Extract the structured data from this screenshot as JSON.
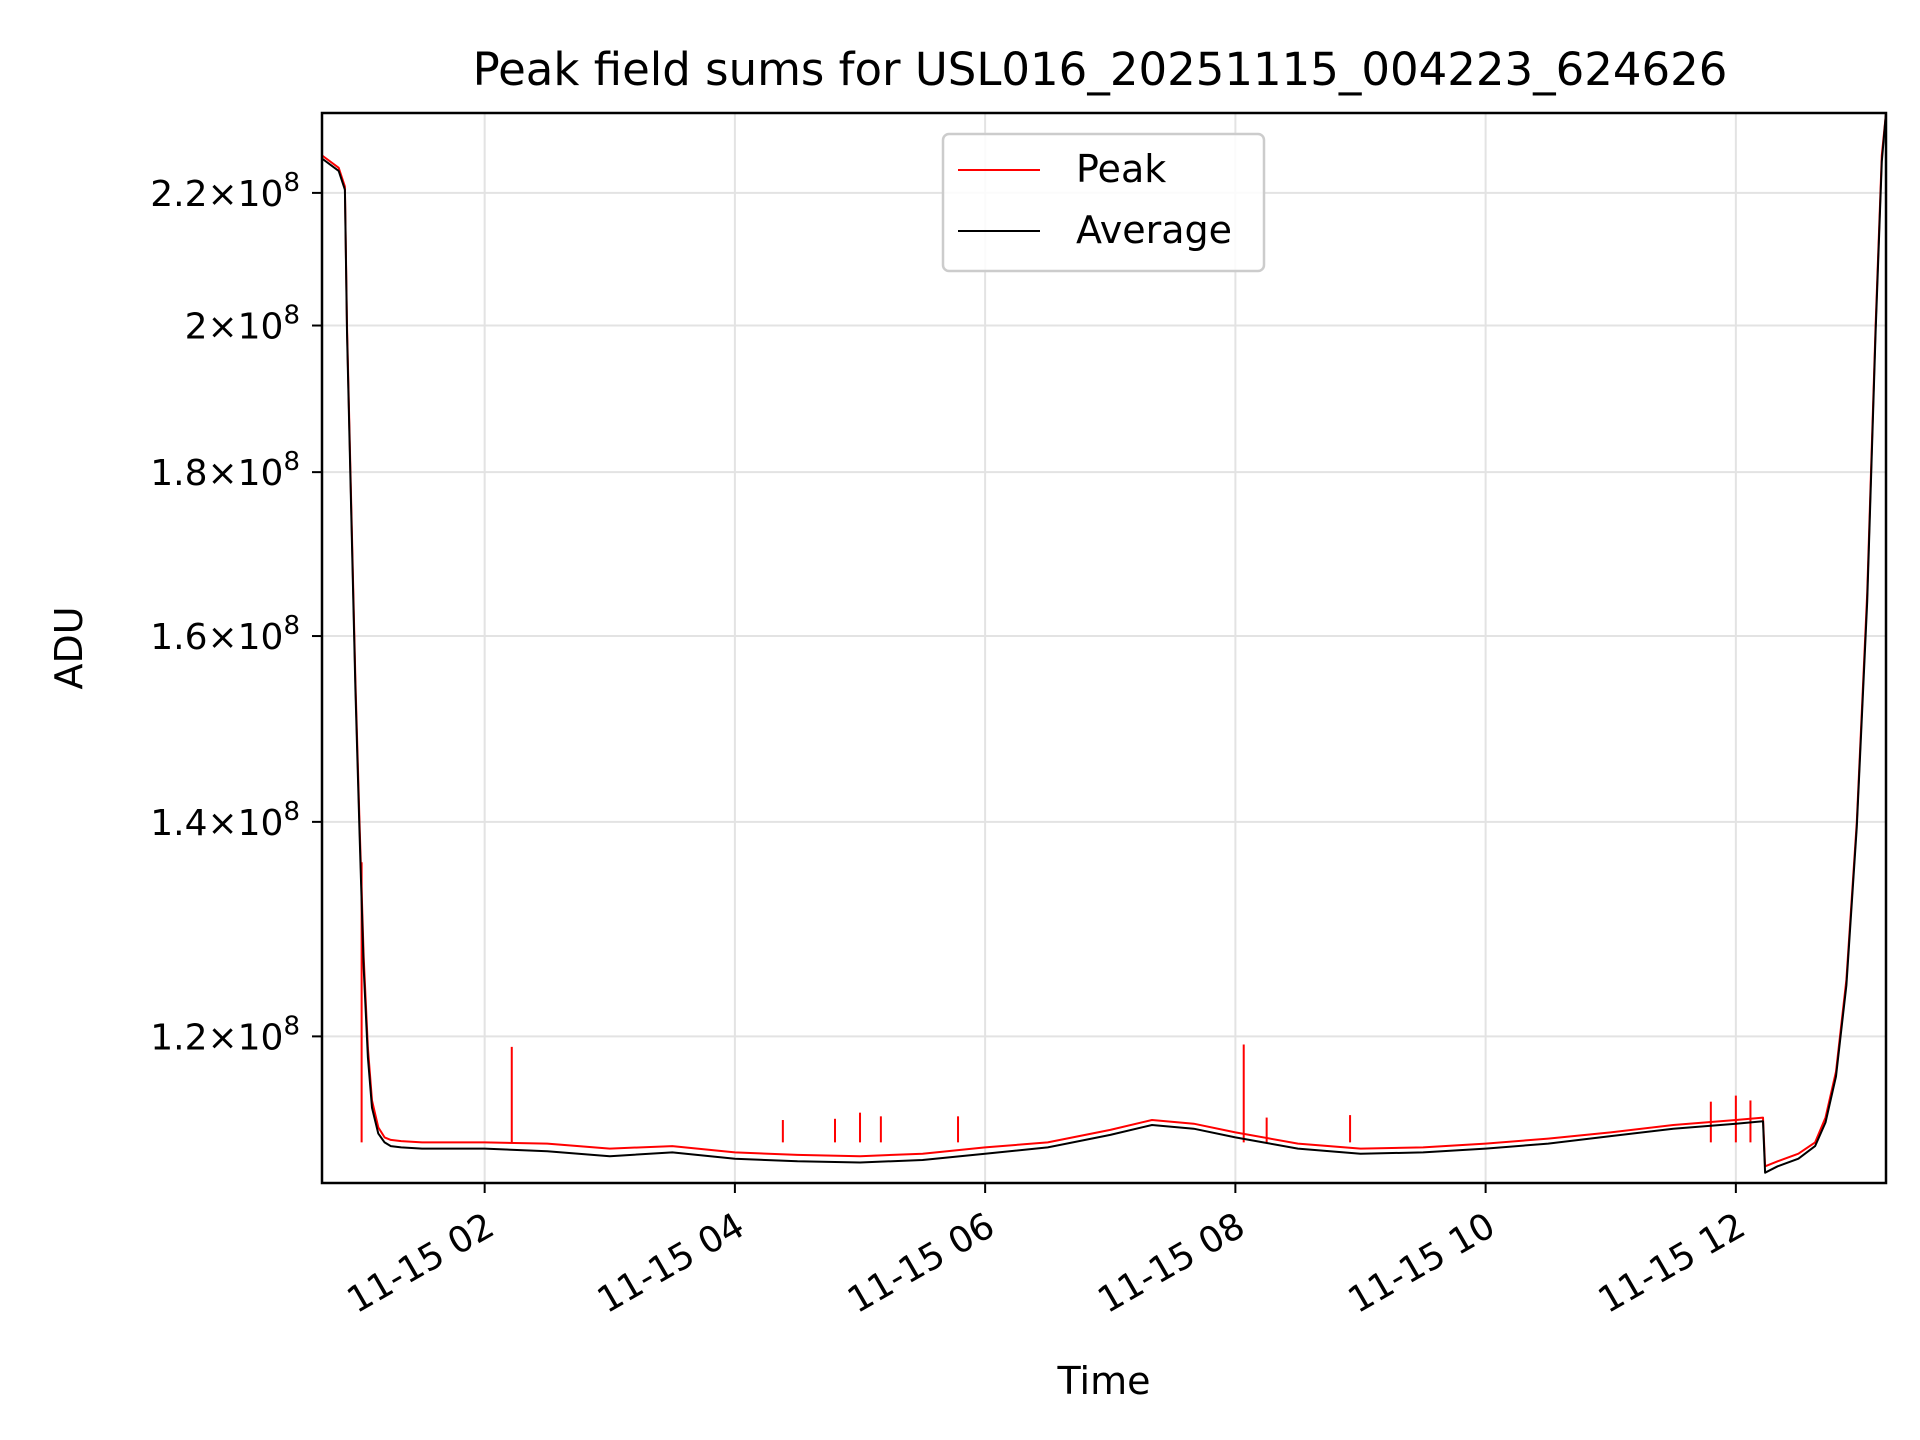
{
  "chart_data": {
    "type": "line",
    "title": "Peak field sums for USL016_20251115_004223_624626",
    "xlabel": "Time",
    "ylabel": "ADU",
    "y_scale": "log",
    "grid": true,
    "legend_position": "top-center",
    "xlim": [
      "2025-11-15 00:42",
      "2025-11-15 13:12"
    ],
    "ylim": [
      108000000,
      233000000
    ],
    "x_ticks": [
      {
        "time": "2025-11-15 02:00",
        "label": "11-15 02"
      },
      {
        "time": "2025-11-15 04:00",
        "label": "11-15 04"
      },
      {
        "time": "2025-11-15 06:00",
        "label": "11-15 06"
      },
      {
        "time": "2025-11-15 08:00",
        "label": "11-15 08"
      },
      {
        "time": "2025-11-15 10:00",
        "label": "11-15 10"
      },
      {
        "time": "2025-11-15 12:00",
        "label": "11-15 12"
      }
    ],
    "y_ticks": [
      {
        "value": 120000000,
        "mantissa": "1.2",
        "base": "10",
        "exp": "8"
      },
      {
        "value": 140000000,
        "mantissa": "1.4",
        "base": "10",
        "exp": "8"
      },
      {
        "value": 160000000,
        "mantissa": "1.6",
        "base": "10",
        "exp": "8"
      },
      {
        "value": 180000000,
        "mantissa": "1.8",
        "base": "10",
        "exp": "8"
      },
      {
        "value": 200000000,
        "mantissa": "2",
        "base": "10",
        "exp": "8"
      },
      {
        "value": 220000000,
        "mantissa": "2.2",
        "base": "10",
        "exp": "8"
      }
    ],
    "series": [
      {
        "name": "Peak",
        "color": "#ff0000",
        "x": [
          "2025-11-15 00:42",
          "2025-11-15 00:50",
          "2025-11-15 00:53",
          "2025-11-15 00:54",
          "2025-11-15 00:56",
          "2025-11-15 00:58",
          "2025-11-15 01:00",
          "2025-11-15 01:02",
          "2025-11-15 01:04",
          "2025-11-15 01:06",
          "2025-11-15 01:09",
          "2025-11-15 01:12",
          "2025-11-15 01:15",
          "2025-11-15 01:20",
          "2025-11-15 01:30",
          "2025-11-15 02:00",
          "2025-11-15 02:30",
          "2025-11-15 03:00",
          "2025-11-15 03:30",
          "2025-11-15 04:00",
          "2025-11-15 04:30",
          "2025-11-15 05:00",
          "2025-11-15 05:30",
          "2025-11-15 06:00",
          "2025-11-15 06:30",
          "2025-11-15 07:00",
          "2025-11-15 07:20",
          "2025-11-15 07:40",
          "2025-11-15 08:00",
          "2025-11-15 08:30",
          "2025-11-15 09:00",
          "2025-11-15 09:30",
          "2025-11-15 10:00",
          "2025-11-15 10:30",
          "2025-11-15 11:00",
          "2025-11-15 11:30",
          "2025-11-15 12:00",
          "2025-11-15 12:13",
          "2025-11-15 12:14",
          "2025-11-15 12:20",
          "2025-11-15 12:30",
          "2025-11-15 12:38",
          "2025-11-15 12:43",
          "2025-11-15 12:48",
          "2025-11-15 12:53",
          "2025-11-15 12:58",
          "2025-11-15 13:03",
          "2025-11-15 13:07",
          "2025-11-15 13:10",
          "2025-11-15 13:12"
        ],
        "y": [
          226000000,
          224000000,
          221000000,
          200000000,
          176000000,
          155000000,
          140000000,
          127000000,
          119000000,
          114600000,
          112400000,
          111600000,
          111400000,
          111300000,
          111200000,
          111200000,
          111100000,
          110700000,
          110900000,
          110400000,
          110200000,
          110100000,
          110300000,
          110800000,
          111200000,
          112200000,
          113000000,
          112700000,
          112000000,
          111100000,
          110700000,
          110800000,
          111100000,
          111500000,
          112000000,
          112600000,
          113000000,
          113200000,
          109300000,
          109700000,
          110300000,
          111200000,
          113200000,
          117000000,
          125000000,
          140000000,
          165000000,
          200000000,
          226000000,
          233000000
        ],
        "spikes": [
          {
            "x": "2025-11-15 01:01",
            "y": 136000000
          },
          {
            "x": "2025-11-15 02:13",
            "y": 119100000
          },
          {
            "x": "2025-11-15 04:23",
            "y": 113000000
          },
          {
            "x": "2025-11-15 04:48",
            "y": 113100000
          },
          {
            "x": "2025-11-15 05:00",
            "y": 113600000
          },
          {
            "x": "2025-11-15 05:10",
            "y": 113300000
          },
          {
            "x": "2025-11-15 05:47",
            "y": 113300000
          },
          {
            "x": "2025-11-15 08:04",
            "y": 119300000
          },
          {
            "x": "2025-11-15 08:15",
            "y": 113200000
          },
          {
            "x": "2025-11-15 08:55",
            "y": 113400000
          },
          {
            "x": "2025-11-15 11:48",
            "y": 114500000
          },
          {
            "x": "2025-11-15 12:00",
            "y": 115000000
          },
          {
            "x": "2025-11-15 12:07",
            "y": 114600000
          }
        ]
      },
      {
        "name": "Average",
        "color": "#000000",
        "x": [
          "2025-11-15 00:42",
          "2025-11-15 00:50",
          "2025-11-15 00:53",
          "2025-11-15 00:54",
          "2025-11-15 00:56",
          "2025-11-15 00:58",
          "2025-11-15 01:00",
          "2025-11-15 01:02",
          "2025-11-15 01:04",
          "2025-11-15 01:06",
          "2025-11-15 01:09",
          "2025-11-15 01:12",
          "2025-11-15 01:15",
          "2025-11-15 01:20",
          "2025-11-15 01:30",
          "2025-11-15 02:00",
          "2025-11-15 02:30",
          "2025-11-15 03:00",
          "2025-11-15 03:30",
          "2025-11-15 04:00",
          "2025-11-15 04:30",
          "2025-11-15 05:00",
          "2025-11-15 05:30",
          "2025-11-15 06:00",
          "2025-11-15 06:30",
          "2025-11-15 07:00",
          "2025-11-15 07:20",
          "2025-11-15 07:40",
          "2025-11-15 08:00",
          "2025-11-15 08:30",
          "2025-11-15 09:00",
          "2025-11-15 09:30",
          "2025-11-15 10:00",
          "2025-11-15 10:30",
          "2025-11-15 11:00",
          "2025-11-15 11:30",
          "2025-11-15 12:00",
          "2025-11-15 12:13",
          "2025-11-15 12:14",
          "2025-11-15 12:20",
          "2025-11-15 12:30",
          "2025-11-15 12:38",
          "2025-11-15 12:43",
          "2025-11-15 12:48",
          "2025-11-15 12:53",
          "2025-11-15 12:58",
          "2025-11-15 13:03",
          "2025-11-15 13:07",
          "2025-11-15 13:10",
          "2025-11-15 13:12"
        ],
        "y": [
          225500000,
          223500000,
          220500000,
          199000000,
          175000000,
          154000000,
          139000000,
          126000000,
          118200000,
          114000000,
          111900000,
          111200000,
          110900000,
          110800000,
          110700000,
          110700000,
          110500000,
          110100000,
          110400000,
          109900000,
          109700000,
          109600000,
          109800000,
          110300000,
          110800000,
          111800000,
          112600000,
          112300000,
          111600000,
          110700000,
          110300000,
          110400000,
          110700000,
          111100000,
          111700000,
          112300000,
          112700000,
          112900000,
          108800000,
          109300000,
          109900000,
          110900000,
          112800000,
          116600000,
          124500000,
          139500000,
          164000000,
          199000000,
          225000000,
          233000000
        ]
      }
    ]
  }
}
